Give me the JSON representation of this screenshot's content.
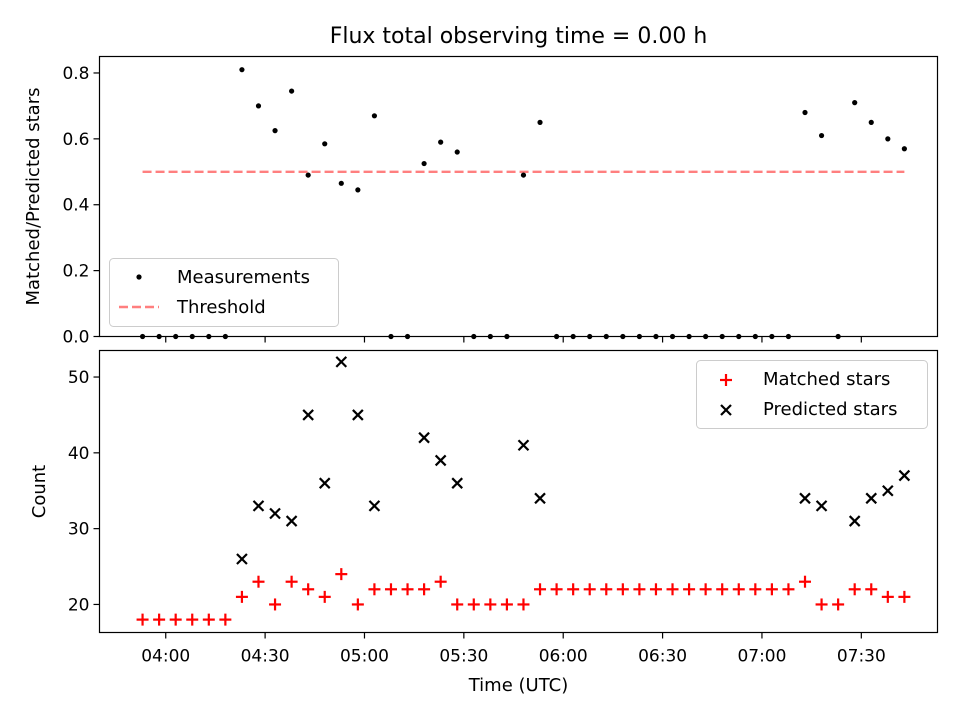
{
  "chart_data": [
    {
      "type": "scatter",
      "title": "Flux total observing time = 0.00 h",
      "xlabel": "",
      "ylabel": "Matched/Predicted stars",
      "ylim": [
        0,
        0.85
      ],
      "yticks": [
        0.0,
        0.2,
        0.4,
        0.6,
        0.8
      ],
      "ytick_labels": [
        "0.0",
        "0.2",
        "0.4",
        "0.6",
        "0.8"
      ],
      "legend_position": "lower-left",
      "series": [
        {
          "name": "Measurements",
          "marker": "dot",
          "color": "#000000",
          "x": [
            "03:53",
            "03:58",
            "04:03",
            "04:08",
            "04:13",
            "04:18",
            "04:23",
            "04:28",
            "04:33",
            "04:38",
            "04:43",
            "04:48",
            "04:53",
            "04:58",
            "05:03",
            "05:08",
            "05:13",
            "05:18",
            "05:23",
            "05:28",
            "05:33",
            "05:38",
            "05:43",
            "05:48",
            "05:53",
            "05:58",
            "06:03",
            "06:08",
            "06:13",
            "06:18",
            "06:23",
            "06:28",
            "06:33",
            "06:38",
            "06:43",
            "06:48",
            "06:53",
            "06:58",
            "07:03",
            "07:08",
            "07:13",
            "07:18",
            "07:23",
            "07:28",
            "07:33",
            "07:38",
            "07:43"
          ],
          "y": [
            0,
            0,
            0,
            0,
            0,
            0,
            0.81,
            0.7,
            0.625,
            0.745,
            0.49,
            0.585,
            0.465,
            0.445,
            0.67,
            0,
            0,
            0.525,
            0.59,
            0.56,
            0,
            0,
            0,
            0.49,
            0.65,
            0,
            0,
            0,
            0,
            0,
            0,
            0,
            0,
            0,
            0,
            0,
            0,
            0,
            0,
            0,
            0.68,
            0.61,
            0,
            0.71,
            0.65,
            0.6,
            0.57
          ]
        },
        {
          "name": "Threshold",
          "marker": "dashed-line",
          "color": "#ff7f7f",
          "x": [
            "03:53",
            "07:43"
          ],
          "y": [
            0.5,
            0.5
          ]
        }
      ]
    },
    {
      "type": "scatter",
      "xlabel": "Time (UTC)",
      "ylabel": "Count",
      "ylim": [
        16.3,
        53.5
      ],
      "yticks": [
        20,
        30,
        40,
        50
      ],
      "ytick_labels": [
        "20",
        "30",
        "40",
        "50"
      ],
      "xticks": [
        "04:00",
        "04:30",
        "05:00",
        "05:30",
        "06:00",
        "06:30",
        "07:00",
        "07:30"
      ],
      "xlim": [
        "03:40",
        "07:53"
      ],
      "legend_position": "top-right",
      "series": [
        {
          "name": "Matched stars",
          "marker": "plus",
          "color": "#ff0000",
          "x": [
            "03:53",
            "03:58",
            "04:03",
            "04:08",
            "04:13",
            "04:18",
            "04:23",
            "04:28",
            "04:33",
            "04:38",
            "04:43",
            "04:48",
            "04:53",
            "04:58",
            "05:03",
            "05:08",
            "05:13",
            "05:18",
            "05:23",
            "05:28",
            "05:33",
            "05:38",
            "05:43",
            "05:48",
            "05:53",
            "05:58",
            "06:03",
            "06:08",
            "06:13",
            "06:18",
            "06:23",
            "06:28",
            "06:33",
            "06:38",
            "06:43",
            "06:48",
            "06:53",
            "06:58",
            "07:03",
            "07:08",
            "07:13",
            "07:18",
            "07:23",
            "07:28",
            "07:33",
            "07:38",
            "07:43"
          ],
          "y": [
            18,
            18,
            18,
            18,
            18,
            18,
            21,
            23,
            20,
            23,
            22,
            21,
            24,
            20,
            22,
            22,
            22,
            22,
            23,
            20,
            20,
            20,
            20,
            20,
            22,
            22,
            22,
            22,
            22,
            22,
            22,
            22,
            22,
            22,
            22,
            22,
            22,
            22,
            22,
            22,
            23,
            20,
            20,
            22,
            22,
            21,
            21
          ]
        },
        {
          "name": "Predicted stars",
          "marker": "x",
          "color": "#000000",
          "x": [
            "04:23",
            "04:28",
            "04:33",
            "04:38",
            "04:43",
            "04:48",
            "04:53",
            "04:58",
            "05:03",
            "05:18",
            "05:23",
            "05:28",
            "05:48",
            "05:53",
            "07:13",
            "07:18",
            "07:28",
            "07:33",
            "07:38",
            "07:43"
          ],
          "y": [
            26,
            33,
            32,
            31,
            45,
            36,
            52,
            45,
            33,
            42,
            39,
            36,
            41,
            34,
            34,
            33,
            31,
            34,
            35,
            37
          ]
        }
      ]
    }
  ]
}
